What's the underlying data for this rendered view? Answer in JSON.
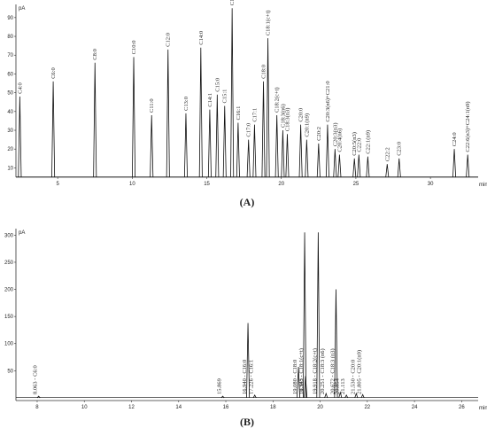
{
  "chart_data": [
    {
      "type": "line",
      "panel_label": "(A)",
      "y_label": "pA",
      "x_label": "min",
      "color": "#111111",
      "label_position": "top",
      "xlim": [
        2.2,
        33.2
      ],
      "xticks": [
        5,
        10,
        15,
        20,
        25,
        30
      ],
      "ylim": [
        5,
        97
      ],
      "yticks": [
        10,
        20,
        30,
        40,
        50,
        60,
        70,
        80,
        90
      ],
      "peak_labels": [
        "C4:0",
        "C6:0",
        "C8:0",
        "C10:0",
        "C11:0",
        "C12:0",
        "C13:0",
        "C14:0",
        "C14:1",
        "C15:0",
        "C15:1",
        "C16:0",
        "C16:1",
        "C17:0",
        "C17:1",
        "C18:0",
        "C18:1(c+t)",
        "C18:2(c+t)",
        "C18:3(n6)",
        "C18:3(n3)",
        "C20:0",
        "C20:1(n9)",
        "C20:2",
        "C20:3(n6)+C21:0",
        "C20:3(n3)",
        "C20:4(n6)",
        "C20:5(n3)",
        "C22:0",
        "C22:1(n9)",
        "C22:2",
        "C23:0",
        "C24:0",
        "C22:6(n3)+C24:1(n9)"
      ],
      "x": [
        2.46,
        4.7,
        7.5,
        10.1,
        11.3,
        12.4,
        13.6,
        14.6,
        15.2,
        15.7,
        16.2,
        16.7,
        17.1,
        17.8,
        18.2,
        18.8,
        19.1,
        19.7,
        20.1,
        20.4,
        21.3,
        21.7,
        22.5,
        23.1,
        23.6,
        23.9,
        24.9,
        25.2,
        25.8,
        27.1,
        27.9,
        31.6,
        32.5
      ],
      "values": [
        48,
        56,
        66,
        69,
        38,
        73,
        39,
        74,
        41,
        49,
        43,
        95,
        34,
        25,
        33,
        56,
        79,
        38,
        30,
        28,
        33,
        25,
        23,
        33,
        20,
        17,
        15,
        17,
        16,
        12,
        15,
        20,
        17
      ]
    },
    {
      "type": "line",
      "panel_label": "(B)",
      "y_label": "pA",
      "x_label": "min",
      "color": "#111111",
      "label_position": "base",
      "xlim": [
        7.1,
        26.7
      ],
      "xticks": [
        8,
        10,
        12,
        14,
        16,
        18,
        20,
        22,
        24,
        26
      ],
      "ylim": [
        -5,
        312
      ],
      "yticks": [
        50,
        100,
        150,
        200,
        250,
        300
      ],
      "peak_labels": [
        "8.063 - C6:0",
        "15.869",
        "16.940 - C16:0",
        "17.226 - C16:1",
        "19.080 - C18:0",
        "19.343 - C18:1(c+t)",
        "19.382",
        "19.918 - C18:2(c+t)",
        "20.251 - C18:3 (n6)",
        "20.672 - C18:3 (n3)",
        "20.854",
        "21.113",
        "21.530 - C20:0",
        "21.805 - C20:1(n9)"
      ],
      "x": [
        8.063,
        15.869,
        16.94,
        17.226,
        19.08,
        19.343,
        19.382,
        19.918,
        20.251,
        20.672,
        20.854,
        21.113,
        21.53,
        21.805
      ],
      "values": [
        3,
        3,
        138,
        5,
        57,
        305,
        40,
        305,
        8,
        200,
        10,
        5,
        8,
        6
      ]
    }
  ]
}
